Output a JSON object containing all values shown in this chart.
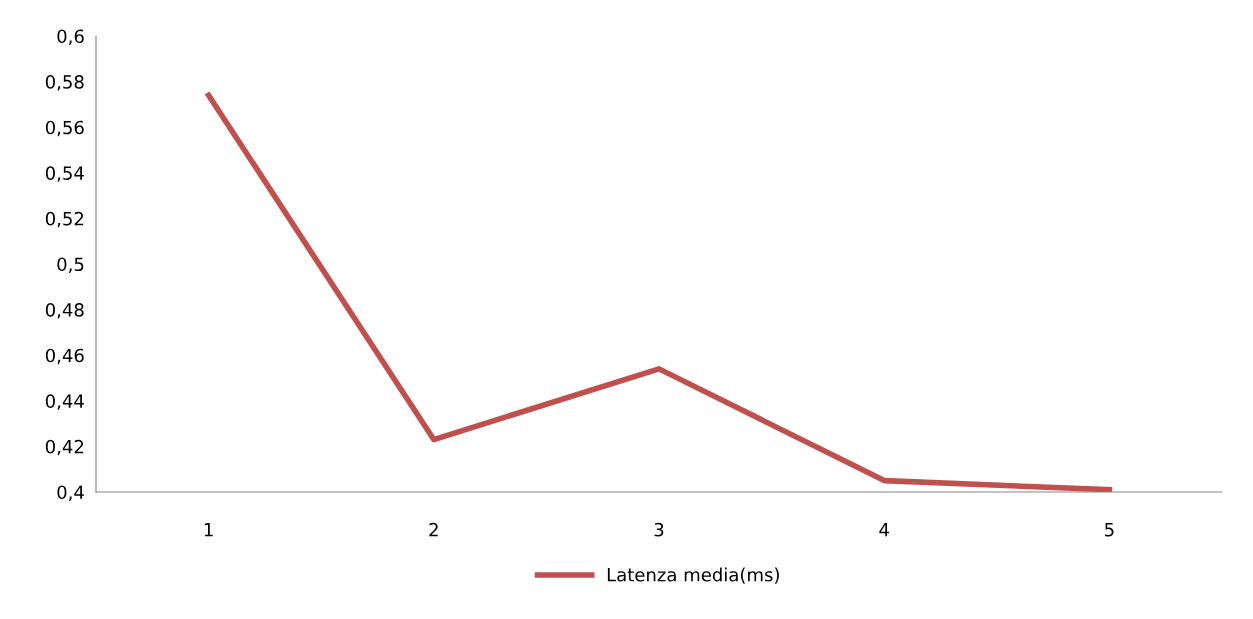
{
  "chart_data": {
    "type": "line",
    "categories": [
      "1",
      "2",
      "3",
      "4",
      "5"
    ],
    "series": [
      {
        "name": "Latenza media(ms)",
        "color": "#c0504d",
        "values": [
          0.574,
          0.423,
          0.454,
          0.405,
          0.401
        ]
      }
    ],
    "ylim": [
      0.4,
      0.6
    ],
    "yticks": [
      {
        "value": 0.4,
        "label": "0,4"
      },
      {
        "value": 0.42,
        "label": "0,42"
      },
      {
        "value": 0.44,
        "label": "0,44"
      },
      {
        "value": 0.46,
        "label": "0,46"
      },
      {
        "value": 0.48,
        "label": "0,48"
      },
      {
        "value": 0.5,
        "label": "0,5"
      },
      {
        "value": 0.52,
        "label": "0,52"
      },
      {
        "value": 0.54,
        "label": "0,54"
      },
      {
        "value": 0.56,
        "label": "0,56"
      },
      {
        "value": 0.58,
        "label": "0,58"
      },
      {
        "value": 0.6,
        "label": "0,6"
      }
    ],
    "legend": "bottom",
    "grid": false,
    "marker": "none",
    "line_style": "solid"
  }
}
